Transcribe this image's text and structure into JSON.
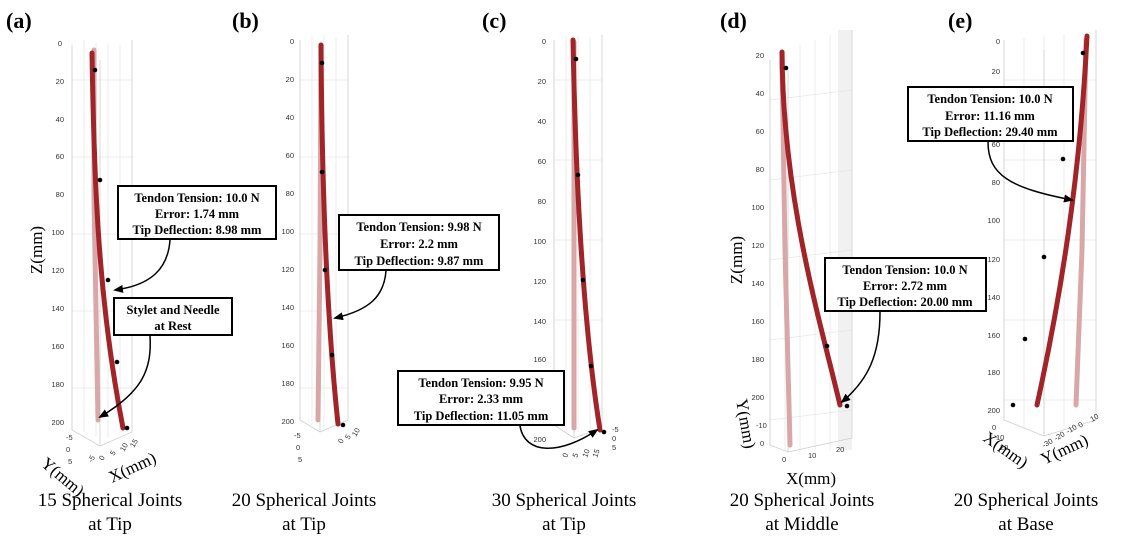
{
  "panels": [
    {
      "id": "a",
      "label": "(a)",
      "caption_line1": "15 Spherical Joints",
      "caption_line2": "at Tip",
      "z_ticks": [
        "0",
        "20",
        "40",
        "60",
        "80",
        "100",
        "120",
        "140",
        "160",
        "180",
        "200"
      ],
      "x_ticks": [
        "-5",
        "0",
        "5",
        "10",
        "15"
      ],
      "y_ticks": [
        "-5",
        "0",
        "5"
      ],
      "axis_z": "Z(mm)",
      "axis_x": "X(mm)",
      "axis_y": "Y(mm)",
      "annotations": [
        {
          "lines": [
            "Tendon Tension: 10.0 N",
            "Error: 1.74 mm",
            "Tip Deflection: 8.98 mm"
          ]
        },
        {
          "lines": [
            "Stylet and Needle",
            "at Rest"
          ]
        }
      ]
    },
    {
      "id": "b",
      "label": "(b)",
      "caption_line1": "20 Spherical Joints",
      "caption_line2": "at Tip",
      "z_ticks": [
        "0",
        "20",
        "40",
        "60",
        "80",
        "100",
        "120",
        "140",
        "160",
        "180",
        "200"
      ],
      "x_ticks": [
        "0",
        "5",
        "10"
      ],
      "y_ticks": [
        "-5",
        "0",
        "5"
      ],
      "annotations": [
        {
          "lines": [
            "Tendon Tension: 9.98 N",
            "Error: 2.2 mm",
            "Tip Deflection: 9.87 mm"
          ]
        }
      ]
    },
    {
      "id": "c",
      "label": "(c)",
      "caption_line1": "30 Spherical Joints",
      "caption_line2": "at Tip",
      "z_ticks": [
        "0",
        "20",
        "40",
        "60",
        "80",
        "100",
        "120",
        "140",
        "160",
        "180",
        "200"
      ],
      "x_ticks": [
        "0",
        "5",
        "10",
        "15"
      ],
      "y_ticks": [
        "-5",
        "0",
        "5"
      ],
      "annotations": [
        {
          "lines": [
            "Tendon Tension: 9.95 N",
            "Error: 2.33 mm",
            "Tip Deflection: 11.05 mm"
          ]
        }
      ]
    },
    {
      "id": "d",
      "label": "(d)",
      "caption_line1": "20 Spherical Joints",
      "caption_line2": "at Middle",
      "z_ticks": [
        "20",
        "40",
        "60",
        "80",
        "100",
        "120",
        "140",
        "160",
        "180",
        "200"
      ],
      "x_ticks": [
        "0",
        "10",
        "20"
      ],
      "y_ticks": [
        "-10",
        "0"
      ],
      "axis_z": "Z(mm)",
      "axis_x": "X(mm)",
      "axis_y": "Y(mm)",
      "annotations": [
        {
          "lines": [
            "Tendon Tension: 10.0 N",
            "Error: 2.72 mm",
            "Tip Deflection: 20.00 mm"
          ]
        }
      ]
    },
    {
      "id": "e",
      "label": "(e)",
      "caption_line1": "20 Spherical Joints",
      "caption_line2": "at Base",
      "z_ticks": [
        "0",
        "20",
        "40",
        "60",
        "80",
        "100",
        "120",
        "140",
        "160",
        "180",
        "200"
      ],
      "x_ticks": [
        "0",
        "10",
        "20"
      ],
      "y_ticks": [
        "-30",
        "-20",
        "-10",
        "0",
        "10"
      ],
      "axis_x": "X(mm)",
      "axis_y": "Y(mm)",
      "annotations": [
        {
          "lines": [
            "Tendon Tension: 10.0 N",
            "Error: 11.16 mm",
            "Tip Deflection: 29.40 mm"
          ]
        }
      ]
    }
  ],
  "colors": {
    "needle": "#a02428",
    "needle_rest": "#d9a7a7",
    "marker": "#000000",
    "grid": "#e6e6e6"
  }
}
